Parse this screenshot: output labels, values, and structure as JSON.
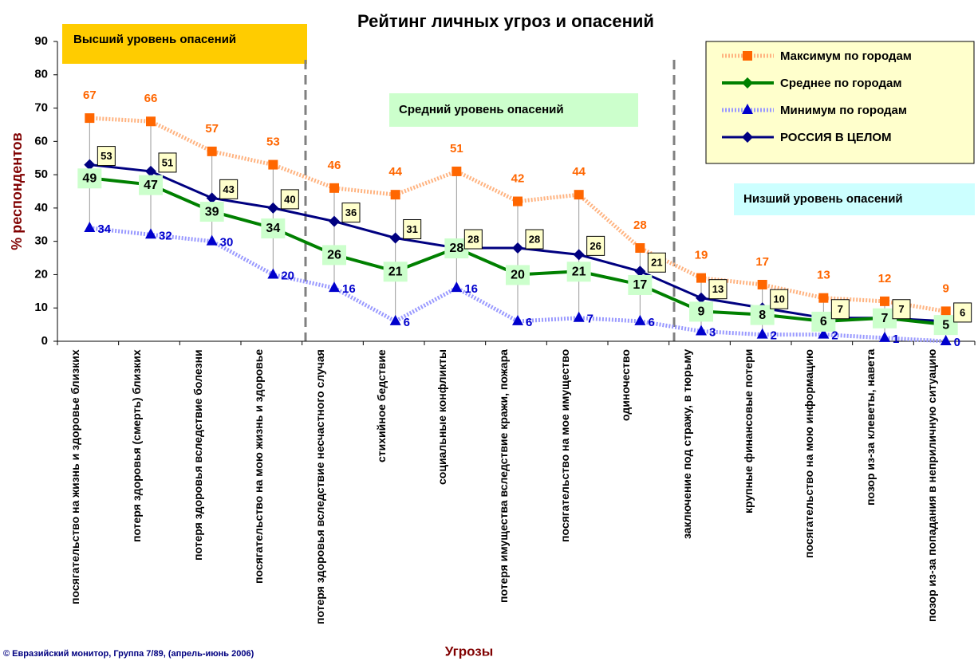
{
  "chart_data": {
    "type": "line",
    "title": "Рейтинг личных угроз и опасений",
    "x_label": "Угрозы",
    "y_label": "% респондентов",
    "annotations": [
      "Высший уровень опасений",
      "Средний уровень опасений",
      "Низший уровень опасений"
    ],
    "source": "© Евразийский монитор, Группа 7/89, (апрель-июнь 2006)",
    "categories": [
      "посягательство на жизнь и здоровье близких",
      "потеря здоровья (смерть) близких",
      "потеря здоровья вследствие болезни",
      "посягательство на мою жизнь и здоровье",
      "потеря здоровья вследствие несчастного случая",
      "стихийное бедствие",
      "социальные конфликты",
      "потеря имущества вследствие кражи, пожара",
      "посягательство на мое имущество",
      "одиночество",
      "заключение под стражу, в тюрьму",
      "крупные финансовые потери",
      "посягательство на мою информацию",
      "позор из-за клеветы, навета",
      "позор из-за попадания в неприличную ситуацию"
    ],
    "series": [
      {
        "name": "Максимум по городам",
        "color": "#ff6600",
        "values": [
          67,
          66,
          57,
          53,
          46,
          44,
          51,
          42,
          44,
          28,
          19,
          17,
          13,
          12,
          9
        ]
      },
      {
        "name": "Среднее по городам",
        "color": "#008000",
        "values": [
          49,
          47,
          39,
          34,
          26,
          21,
          28,
          20,
          21,
          17,
          9,
          8,
          6,
          7,
          5
        ]
      },
      {
        "name": "Минимум по городам",
        "color": "#0000cc",
        "values": [
          34,
          32,
          30,
          20,
          16,
          6,
          16,
          6,
          7,
          6,
          3,
          2,
          2,
          1,
          0
        ]
      },
      {
        "name": "РОССИЯ В ЦЕЛОМ",
        "color": "#000080",
        "values": [
          53,
          51,
          43,
          40,
          36,
          31,
          28,
          28,
          26,
          21,
          13,
          10,
          7,
          7,
          6
        ]
      }
    ],
    "ylim": [
      0,
      90
    ],
    "yticks": [
      0,
      10,
      20,
      30,
      40,
      50,
      60,
      70,
      80,
      90
    ]
  }
}
